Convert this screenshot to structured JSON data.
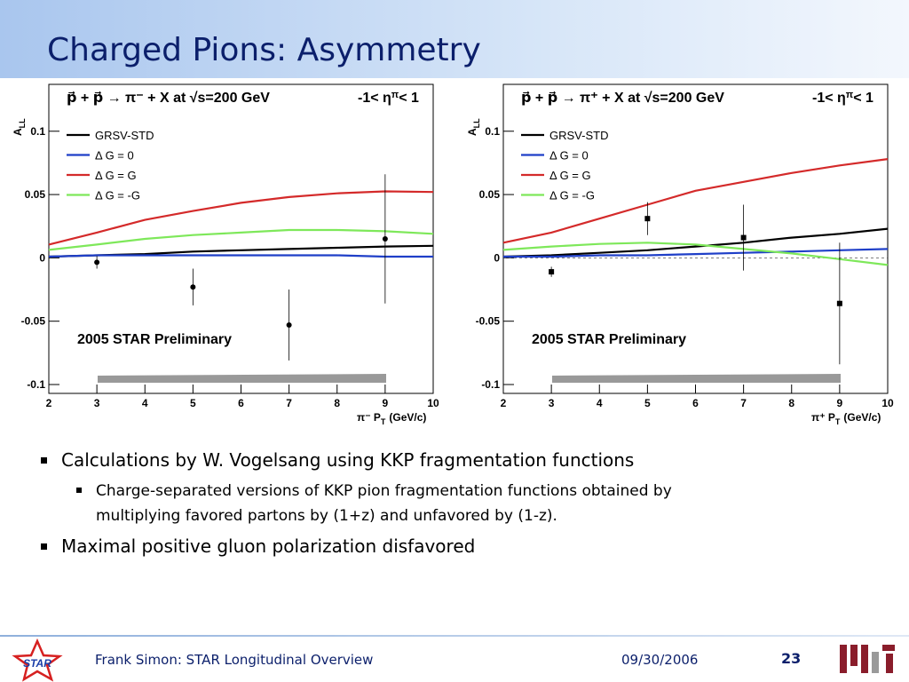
{
  "slide_title": "Charged Pions: Asymmetry",
  "bullets": [
    {
      "text": "Calculations by W. Vogelsang using KKP fragmentation functions",
      "sub": [
        "Charge-separated versions of KKP pion fragmentation functions obtained by",
        "multiplying favored partons by (1+z) and unfavored by (1-z)."
      ]
    },
    {
      "text": "Maximal positive gluon polarization disfavored",
      "sub": []
    }
  ],
  "footer": {
    "logo_text": "STAR",
    "author": "Frank Simon: STAR Longitudinal Overview",
    "date": "09/30/2006",
    "page": "23"
  },
  "chart_data": [
    {
      "type": "line",
      "title": "p⃗ + p⃗ → π⁻ + X at √s=200 GeV",
      "eta_cut": [
        "-1< η",
        "π",
        "< 1"
      ],
      "ylabel": "A",
      "ylabel_sub": "LL",
      "xlabel": "π⁻ P",
      "xlabel_sub": "T",
      "xlabel_unit": "(GeV/c)",
      "annotation": "2005 STAR Preliminary",
      "legend": "upper left",
      "xlim": [
        2,
        10
      ],
      "ylim": [
        -0.107,
        0.137
      ],
      "xticks": [
        2,
        3,
        4,
        5,
        6,
        7,
        8,
        9,
        10
      ],
      "yticks": [
        -0.1,
        -0.05,
        0,
        0.05,
        0.1
      ],
      "x": [
        2,
        3,
        4,
        5,
        6,
        7,
        8,
        9,
        10
      ],
      "series": [
        {
          "name": "GRSV-STD",
          "color": "#000000",
          "values": [
            0.001,
            0.002,
            0.003,
            0.005,
            0.006,
            0.007,
            0.008,
            0.009,
            0.0095
          ]
        },
        {
          "name": "Δ G =  0",
          "color": "#1f3fc8",
          "values": [
            0.001,
            0.002,
            0.002,
            0.002,
            0.002,
            0.002,
            0.002,
            0.001,
            0.001
          ]
        },
        {
          "name": "Δ G =  G",
          "color": "#d42a2a",
          "values": [
            0.0105,
            0.02,
            0.03,
            0.037,
            0.0435,
            0.048,
            0.051,
            0.0525,
            0.052
          ]
        },
        {
          "name": "Δ G = -G",
          "color": "#7ee85a",
          "values": [
            0.0063,
            0.0105,
            0.015,
            0.018,
            0.02,
            0.022,
            0.022,
            0.021,
            0.019
          ]
        }
      ],
      "points": {
        "marker": "circle",
        "x": [
          3,
          5,
          7,
          9
        ],
        "values": [
          -0.0035,
          -0.023,
          -0.053,
          0.015
        ],
        "errors": [
          0.005,
          0.0145,
          0.028,
          0.051
        ]
      }
    },
    {
      "type": "line",
      "title": "p⃗ + p⃗ → π⁺ + X at √s=200 GeV",
      "eta_cut": [
        "-1< η",
        "π",
        "< 1"
      ],
      "ylabel": "A",
      "ylabel_sub": "LL",
      "xlabel": "π⁺ P",
      "xlabel_sub": "T",
      "xlabel_unit": "(GeV/c)",
      "annotation": "2005 STAR Preliminary",
      "legend": "upper left",
      "xlim": [
        2,
        10
      ],
      "ylim": [
        -0.107,
        0.137
      ],
      "xticks": [
        2,
        3,
        4,
        5,
        6,
        7,
        8,
        9,
        10
      ],
      "yticks": [
        -0.1,
        -0.05,
        0,
        0.05,
        0.1
      ],
      "x": [
        2,
        3,
        4,
        5,
        6,
        7,
        8,
        9,
        10
      ],
      "series": [
        {
          "name": "GRSV-STD",
          "color": "#000000",
          "values": [
            0.001,
            0.002,
            0.004,
            0.006,
            0.009,
            0.012,
            0.016,
            0.019,
            0.023
          ]
        },
        {
          "name": "Δ G =  0",
          "color": "#1f3fc8",
          "values": [
            0.001,
            0.001,
            0.002,
            0.002,
            0.003,
            0.004,
            0.005,
            0.006,
            0.007
          ]
        },
        {
          "name": "Δ G =  G",
          "color": "#d42a2a",
          "values": [
            0.012,
            0.02,
            0.031,
            0.042,
            0.053,
            0.06,
            0.067,
            0.073,
            0.078
          ]
        },
        {
          "name": "Δ G = -G",
          "color": "#7ee85a",
          "values": [
            0.0063,
            0.009,
            0.011,
            0.012,
            0.0105,
            0.007,
            0.0035,
            -0.001,
            -0.0056
          ]
        }
      ],
      "points": {
        "marker": "square",
        "x": [
          3,
          5,
          7,
          9
        ],
        "values": [
          -0.011,
          0.031,
          0.016,
          -0.036
        ],
        "errors": [
          0.004,
          0.013,
          0.026,
          0.048
        ]
      }
    }
  ]
}
